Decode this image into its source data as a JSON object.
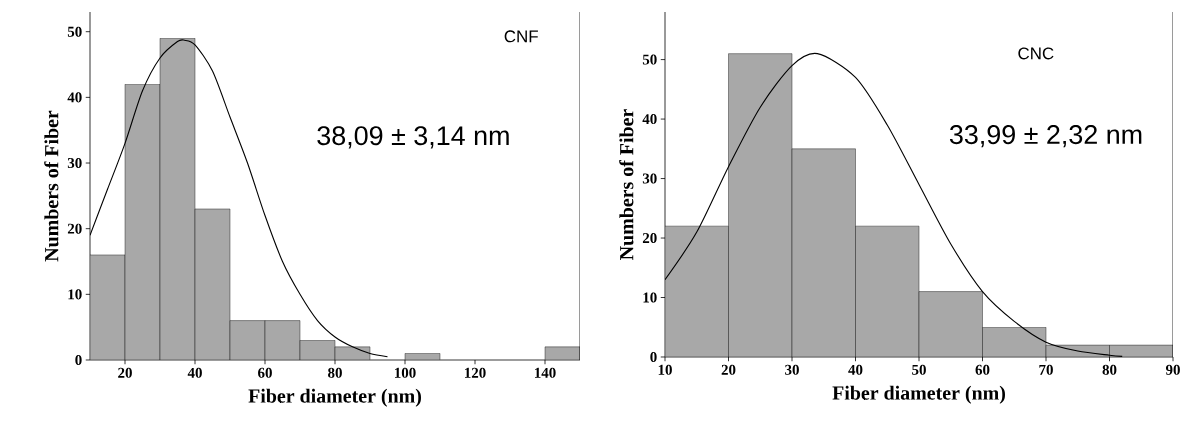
{
  "chart_data": [
    {
      "type": "histogram",
      "bins": [
        10,
        20,
        30,
        40,
        50,
        60,
        70,
        80,
        90,
        100,
        110,
        120,
        130,
        140,
        150
      ],
      "series": [
        {
          "color": "#a8a8a8",
          "values": [
            16,
            42,
            49,
            23,
            6,
            6,
            3,
            2,
            0,
            1,
            0,
            0,
            0,
            2
          ]
        },
        {
          "type": "line",
          "color": "#000000",
          "x": [
            10,
            15,
            20,
            25,
            30,
            35,
            37,
            40,
            45,
            50,
            55,
            60,
            65,
            70,
            75,
            80,
            85,
            90,
            95
          ],
          "values": [
            19,
            26,
            33,
            41,
            46,
            48.5,
            48.7,
            48,
            44,
            37,
            30,
            22,
            15,
            10,
            6,
            3.5,
            2,
            1,
            0.5
          ]
        }
      ],
      "xlabel": "Fiber diameter (nm)",
      "ylabel": "Numbers of Fiber",
      "xlim": [
        10,
        150
      ],
      "ylim": [
        0,
        53
      ],
      "xticks": [
        20,
        40,
        60,
        80,
        100,
        120,
        140
      ],
      "yticks": [
        0,
        10,
        20,
        30,
        40,
        50
      ],
      "annotations": [
        "CNF",
        "38,09 ± 3,14 nm"
      ]
    },
    {
      "type": "histogram",
      "bins": [
        10,
        20,
        30,
        40,
        50,
        60,
        70,
        80,
        90
      ],
      "series": [
        {
          "color": "#a8a8a8",
          "values": [
            22,
            51,
            35,
            22,
            11,
            5,
            2,
            2
          ]
        },
        {
          "type": "line",
          "color": "#000000",
          "x": [
            10,
            15,
            20,
            25,
            30,
            34,
            40,
            45,
            50,
            55,
            60,
            65,
            70,
            75,
            80,
            82
          ],
          "values": [
            13,
            21,
            32,
            42,
            49,
            51,
            47,
            39,
            29,
            19,
            11,
            6,
            2.5,
            1,
            0.3,
            0.1
          ]
        }
      ],
      "xlabel": "Fiber diameter (nm)",
      "ylabel": "Numbers of Fiber",
      "xlim": [
        10,
        90
      ],
      "ylim": [
        0,
        58
      ],
      "xticks": [
        10,
        20,
        30,
        40,
        50,
        60,
        70,
        80,
        90
      ],
      "yticks": [
        0,
        10,
        20,
        30,
        40,
        50
      ],
      "annotations": [
        "CNC",
        "33,99 ± 2,32 nm"
      ]
    }
  ]
}
